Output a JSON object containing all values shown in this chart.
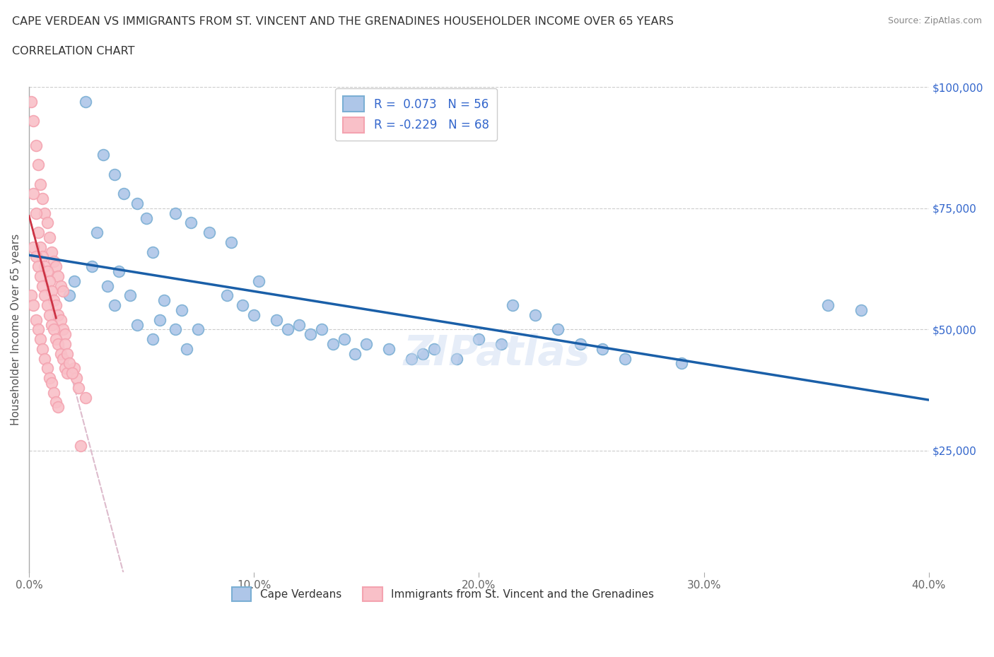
{
  "title_line1": "CAPE VERDEAN VS IMMIGRANTS FROM ST. VINCENT AND THE GRENADINES HOUSEHOLDER INCOME OVER 65 YEARS",
  "title_line2": "CORRELATION CHART",
  "source_text": "Source: ZipAtlas.com",
  "ylabel": "Householder Income Over 65 years",
  "xlim": [
    0.0,
    0.4
  ],
  "ylim": [
    0,
    100000
  ],
  "xtick_labels": [
    "0.0%",
    "10.0%",
    "20.0%",
    "30.0%",
    "40.0%"
  ],
  "xtick_vals": [
    0.0,
    0.1,
    0.2,
    0.3,
    0.4
  ],
  "ytick_labels": [
    "$25,000",
    "$50,000",
    "$75,000",
    "$100,000"
  ],
  "ytick_vals": [
    25000,
    50000,
    75000,
    100000
  ],
  "grid_color": "#cccccc",
  "watermark": "ZIPatlas",
  "blue_R": 0.073,
  "blue_N": 56,
  "pink_R": -0.229,
  "pink_N": 68,
  "blue_face": "#aec6e8",
  "blue_edge": "#7bafd4",
  "pink_face": "#f9c0c8",
  "pink_edge": "#f4a3b0",
  "blue_line_color": "#1a5fa8",
  "pink_line_solid_color": "#cc3344",
  "pink_line_dash_color": "#ddbbcc",
  "legend_text_color": "#3366cc",
  "blue_scatter_x": [
    0.025,
    0.033,
    0.038,
    0.042,
    0.048,
    0.052,
    0.03,
    0.055,
    0.028,
    0.04,
    0.02,
    0.035,
    0.045,
    0.018,
    0.06,
    0.038,
    0.068,
    0.058,
    0.048,
    0.065,
    0.075,
    0.088,
    0.095,
    0.102,
    0.065,
    0.072,
    0.08,
    0.09,
    0.1,
    0.11,
    0.12,
    0.13,
    0.055,
    0.07,
    0.14,
    0.15,
    0.16,
    0.115,
    0.125,
    0.135,
    0.145,
    0.17,
    0.175,
    0.18,
    0.19,
    0.2,
    0.21,
    0.215,
    0.225,
    0.235,
    0.245,
    0.255,
    0.265,
    0.29,
    0.355,
    0.37
  ],
  "blue_scatter_y": [
    97000,
    86000,
    82000,
    78000,
    76000,
    73000,
    70000,
    66000,
    63000,
    62000,
    60000,
    59000,
    57000,
    57000,
    56000,
    55000,
    54000,
    52000,
    51000,
    50000,
    50000,
    57000,
    55000,
    60000,
    74000,
    72000,
    70000,
    68000,
    53000,
    52000,
    51000,
    50000,
    48000,
    46000,
    48000,
    47000,
    46000,
    50000,
    49000,
    47000,
    45000,
    44000,
    45000,
    46000,
    44000,
    48000,
    47000,
    55000,
    53000,
    50000,
    47000,
    46000,
    44000,
    43000,
    55000,
    54000
  ],
  "pink_scatter_x": [
    0.001,
    0.002,
    0.003,
    0.004,
    0.005,
    0.006,
    0.007,
    0.008,
    0.009,
    0.01,
    0.011,
    0.012,
    0.013,
    0.014,
    0.015,
    0.002,
    0.003,
    0.004,
    0.005,
    0.006,
    0.007,
    0.008,
    0.009,
    0.01,
    0.011,
    0.012,
    0.013,
    0.014,
    0.015,
    0.016,
    0.002,
    0.003,
    0.004,
    0.005,
    0.006,
    0.007,
    0.008,
    0.009,
    0.01,
    0.011,
    0.012,
    0.013,
    0.014,
    0.015,
    0.016,
    0.017,
    0.001,
    0.002,
    0.003,
    0.004,
    0.005,
    0.006,
    0.007,
    0.008,
    0.009,
    0.01,
    0.011,
    0.012,
    0.013,
    0.02,
    0.021,
    0.022,
    0.025,
    0.016,
    0.017,
    0.018,
    0.019,
    0.023
  ],
  "pink_scatter_y": [
    97000,
    93000,
    88000,
    84000,
    80000,
    77000,
    74000,
    72000,
    69000,
    66000,
    64000,
    63000,
    61000,
    59000,
    58000,
    78000,
    74000,
    70000,
    67000,
    65000,
    63000,
    62000,
    60000,
    58000,
    56000,
    55000,
    53000,
    52000,
    50000,
    49000,
    67000,
    65000,
    63000,
    61000,
    59000,
    57000,
    55000,
    53000,
    51000,
    50000,
    48000,
    47000,
    45000,
    44000,
    42000,
    41000,
    57000,
    55000,
    52000,
    50000,
    48000,
    46000,
    44000,
    42000,
    40000,
    39000,
    37000,
    35000,
    34000,
    42000,
    40000,
    38000,
    36000,
    47000,
    45000,
    43000,
    41000,
    26000
  ]
}
